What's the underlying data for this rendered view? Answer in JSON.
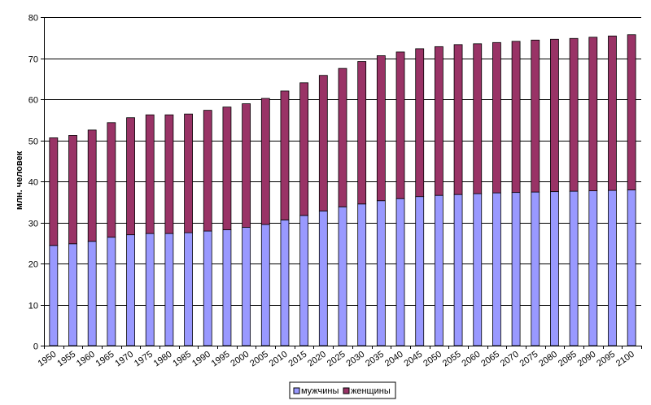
{
  "chart_data": {
    "type": "bar",
    "stacked": true,
    "ylabel": "млн. человек",
    "ylim": [
      0,
      80
    ],
    "yticks": [
      0,
      10,
      20,
      30,
      40,
      50,
      60,
      70,
      80
    ],
    "grid": true,
    "legend_position": "bottom",
    "categories": [
      "1950",
      "1955",
      "1960",
      "1965",
      "1970",
      "1975",
      "1980",
      "1985",
      "1990",
      "1995",
      "2000",
      "2005",
      "2010",
      "2015",
      "2020",
      "2025",
      "2030",
      "2035",
      "2040",
      "2045",
      "2050",
      "2055",
      "2060",
      "2065",
      "2070",
      "2075",
      "2080",
      "2085",
      "2090",
      "2095",
      "2100"
    ],
    "series": [
      {
        "name": "мужчины",
        "color": "#9999ff",
        "values": [
          24.4,
          24.8,
          25.4,
          26.4,
          27.0,
          27.3,
          27.3,
          27.5,
          27.9,
          28.2,
          28.8,
          29.5,
          30.6,
          31.7,
          32.8,
          33.8,
          34.5,
          35.3,
          35.8,
          36.3,
          36.6,
          36.8,
          37.0,
          37.2,
          37.3,
          37.4,
          37.5,
          37.6,
          37.7,
          37.8,
          37.9
        ]
      },
      {
        "name": "женщины",
        "color": "#993366",
        "values": [
          26.2,
          26.4,
          27.1,
          27.9,
          28.5,
          28.9,
          28.9,
          28.9,
          29.4,
          29.9,
          30.1,
          30.7,
          31.4,
          32.3,
          33.0,
          33.7,
          34.7,
          35.3,
          35.7,
          36.0,
          36.2,
          36.5,
          36.5,
          36.6,
          36.8,
          37.0,
          37.1,
          37.2,
          37.4,
          37.6,
          37.8
        ]
      }
    ]
  }
}
